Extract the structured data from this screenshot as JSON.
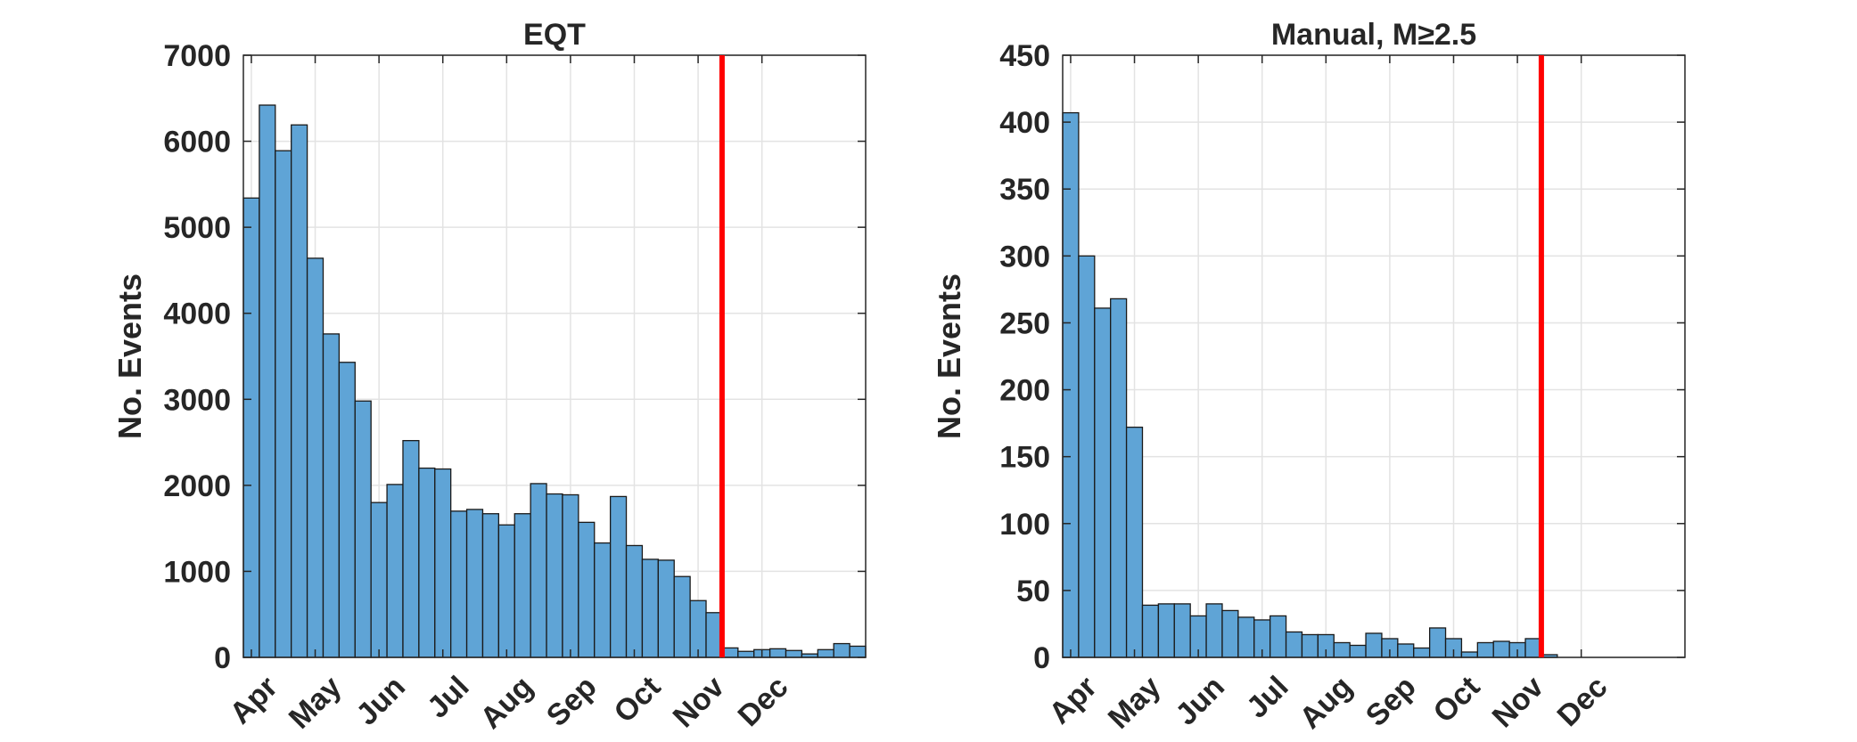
{
  "chart_data": [
    {
      "type": "bar",
      "title": "EQT",
      "xlabel": "",
      "ylabel": "No. Events",
      "ylim": [
        0,
        7000
      ],
      "yticks": [
        "0",
        "1000",
        "2000",
        "3000",
        "4000",
        "5000",
        "6000",
        "7000"
      ],
      "xticks": [
        "Apr",
        "May",
        "Jun",
        "Jul",
        "Aug",
        "Sep",
        "Oct",
        "Nov",
        "Dec"
      ],
      "grid": true,
      "bar_color": "#5fa4d6",
      "bar_edge_color": "#1a1a1a",
      "marker_line_color": "#ff0000",
      "marker_line_bin": 30,
      "values": [
        5340,
        6420,
        5890,
        6190,
        4640,
        3760,
        3430,
        2980,
        1800,
        2010,
        2520,
        2200,
        2190,
        1700,
        1720,
        1670,
        1540,
        1670,
        2020,
        1900,
        1890,
        1570,
        1330,
        1870,
        1300,
        1140,
        1130,
        940,
        660,
        520,
        110,
        70,
        90,
        100,
        80,
        40,
        90,
        160,
        130
      ]
    },
    {
      "type": "bar",
      "title": "Manual, M≥2.5",
      "xlabel": "",
      "ylabel": "No. Events",
      "ylim": [
        0,
        450
      ],
      "yticks": [
        "0",
        "50",
        "100",
        "150",
        "200",
        "250",
        "300",
        "350",
        "400",
        "450"
      ],
      "xticks": [
        "Apr",
        "May",
        "Jun",
        "Jul",
        "Aug",
        "Sep",
        "Oct",
        "Nov",
        "Dec"
      ],
      "grid": true,
      "bar_color": "#5fa4d6",
      "bar_edge_color": "#1a1a1a",
      "marker_line_color": "#ff0000",
      "marker_line_bin": 30,
      "values": [
        407,
        300,
        261,
        268,
        172,
        39,
        40,
        40,
        31,
        40,
        35,
        30,
        28,
        31,
        19,
        17,
        17,
        11,
        9,
        18,
        14,
        10,
        7,
        22,
        14,
        4,
        11,
        12,
        11,
        14,
        2,
        0,
        0,
        0,
        0,
        0,
        0,
        0,
        0
      ]
    }
  ]
}
